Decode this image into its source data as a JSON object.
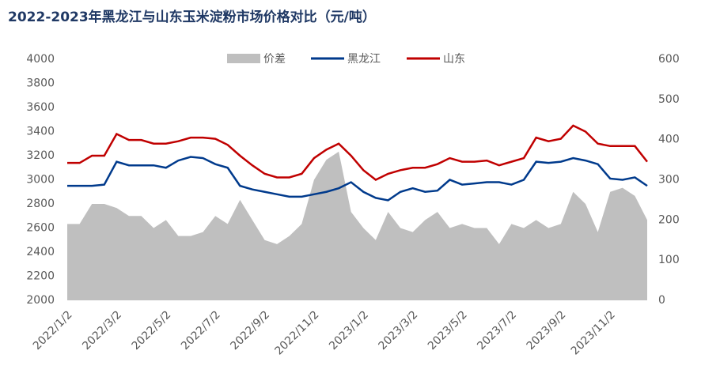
{
  "chart_data": {
    "type": "line",
    "title": "2022-2023年黑龙江与山东玉米淀粉市场价格对比（元/吨）",
    "categories": [
      "2022/1/2",
      null,
      null,
      null,
      "2022/3/2",
      null,
      null,
      null,
      "2022/5/2",
      null,
      null,
      null,
      "2022/7/2",
      null,
      null,
      null,
      "2022/9/2",
      null,
      null,
      null,
      "2022/11/2",
      null,
      null,
      null,
      "2023/1/2",
      null,
      null,
      null,
      "2023/3/2",
      null,
      null,
      null,
      "2023/5/2",
      null,
      null,
      null,
      "2023/7/2",
      null,
      null,
      null,
      "2023/9/2",
      null,
      null,
      null,
      "2023/11/2",
      null,
      null,
      null
    ],
    "ylim": [
      2000,
      4000
    ],
    "yticks": [
      2000,
      2200,
      2400,
      2600,
      2800,
      3000,
      3200,
      3400,
      3600,
      3800,
      4000
    ],
    "y2lim": [
      0,
      600
    ],
    "y2ticks": [
      0,
      100,
      200,
      300,
      400,
      500,
      600
    ],
    "legend": "top",
    "series": [
      {
        "name": "价差",
        "color": "#bfbfbf",
        "axis": "y2",
        "kind": "area",
        "values": [
          190,
          190,
          240,
          240,
          230,
          210,
          210,
          180,
          200,
          160,
          160,
          170,
          210,
          190,
          250,
          200,
          150,
          140,
          160,
          190,
          300,
          350,
          370,
          220,
          180,
          150,
          220,
          180,
          170,
          200,
          220,
          180,
          190,
          180,
          180,
          140,
          190,
          180,
          200,
          180,
          190,
          270,
          240,
          170,
          270,
          280,
          260,
          200
        ]
      },
      {
        "name": "黑龙江",
        "color": "#003a8c",
        "values": [
          2950,
          2950,
          2950,
          2960,
          3150,
          3120,
          3120,
          3120,
          3100,
          3160,
          3190,
          3180,
          3130,
          3100,
          2950,
          2920,
          2900,
          2880,
          2860,
          2860,
          2880,
          2900,
          2930,
          2980,
          2900,
          2850,
          2830,
          2900,
          2930,
          2900,
          2910,
          3000,
          2960,
          2970,
          2980,
          2980,
          2960,
          3000,
          3150,
          3140,
          3150,
          3180,
          3160,
          3130,
          3010,
          3000,
          3020,
          2950
        ]
      },
      {
        "name": "山东",
        "color": "#c00000",
        "values": [
          3140,
          3140,
          3200,
          3200,
          3380,
          3330,
          3330,
          3300,
          3300,
          3320,
          3350,
          3350,
          3340,
          3290,
          3200,
          3120,
          3050,
          3020,
          3020,
          3050,
          3180,
          3250,
          3300,
          3200,
          3080,
          3000,
          3050,
          3080,
          3100,
          3100,
          3130,
          3180,
          3150,
          3150,
          3160,
          3120,
          3150,
          3180,
          3350,
          3320,
          3340,
          3450,
          3400,
          3300,
          3280,
          3280,
          3280,
          3150
        ]
      }
    ]
  }
}
